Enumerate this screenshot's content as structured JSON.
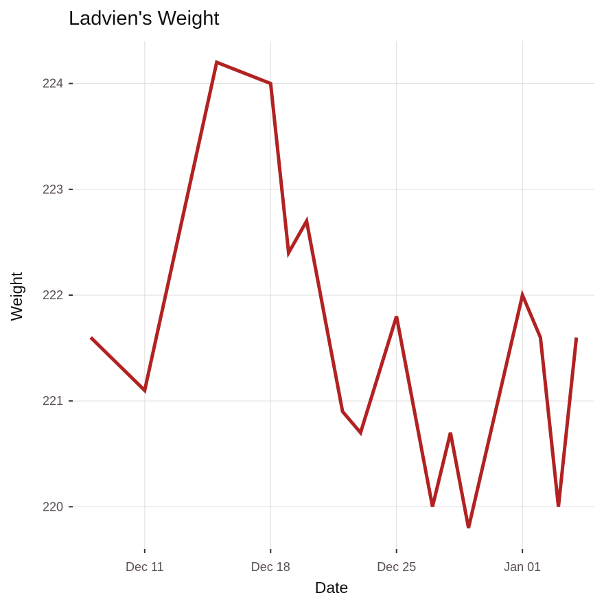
{
  "chart_data": {
    "type": "line",
    "title": "Ladvien's Weight",
    "xlabel": "Date",
    "ylabel": "Weight",
    "x_ticks": [
      {
        "date": "2017-12-11",
        "label": "Dec 11"
      },
      {
        "date": "2017-12-18",
        "label": "Dec 18"
      },
      {
        "date": "2017-12-25",
        "label": "Dec 25"
      },
      {
        "date": "2018-01-01",
        "label": "Jan 01"
      }
    ],
    "y_ticks": [
      220,
      221,
      222,
      223,
      224
    ],
    "xlim": [
      "2017-12-07",
      "2018-01-05"
    ],
    "ylim": [
      219.6,
      224.4
    ],
    "grid": true,
    "line_color": "#b22222",
    "series": [
      {
        "points": [
          {
            "x": "2017-12-08",
            "y": 221.6
          },
          {
            "x": "2017-12-11",
            "y": 221.1
          },
          {
            "x": "2017-12-15",
            "y": 224.2
          },
          {
            "x": "2017-12-18",
            "y": 224.0
          },
          {
            "x": "2017-12-19",
            "y": 222.4
          },
          {
            "x": "2017-12-20",
            "y": 222.7
          },
          {
            "x": "2017-12-22",
            "y": 220.9
          },
          {
            "x": "2017-12-23",
            "y": 220.7
          },
          {
            "x": "2017-12-25",
            "y": 221.8
          },
          {
            "x": "2017-12-27",
            "y": 220.0
          },
          {
            "x": "2017-12-28",
            "y": 220.7
          },
          {
            "x": "2017-12-29",
            "y": 219.8
          },
          {
            "x": "2018-01-01",
            "y": 222.0
          },
          {
            "x": "2018-01-02",
            "y": 221.6
          },
          {
            "x": "2018-01-03",
            "y": 220.0
          },
          {
            "x": "2018-01-04",
            "y": 221.6
          }
        ]
      }
    ]
  }
}
